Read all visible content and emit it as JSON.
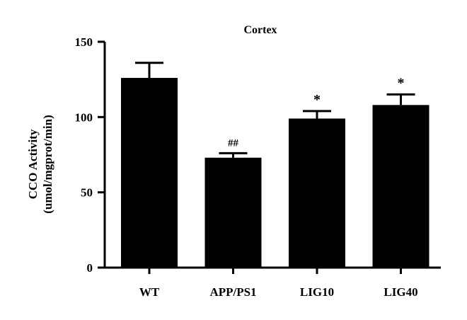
{
  "chart_data": {
    "type": "bar",
    "title": "Cortex",
    "ylabel_line1": "CCO Activity",
    "ylabel_line2": "(umol/mgprot/min)",
    "xlabel": "",
    "categories": [
      "WT",
      "APP/PS1",
      "LIG10",
      "LIG40"
    ],
    "values": [
      126,
      73,
      99,
      108
    ],
    "errors": [
      10,
      3,
      5,
      7
    ],
    "annotations": [
      "",
      "##",
      "*",
      "*"
    ],
    "ylim": [
      0,
      150
    ],
    "yticks": [
      0,
      50,
      100,
      150
    ],
    "ytick_labels": [
      "0",
      "50",
      "100",
      "150"
    ],
    "bar_color": "#000000",
    "grid": false,
    "legend": "none"
  }
}
